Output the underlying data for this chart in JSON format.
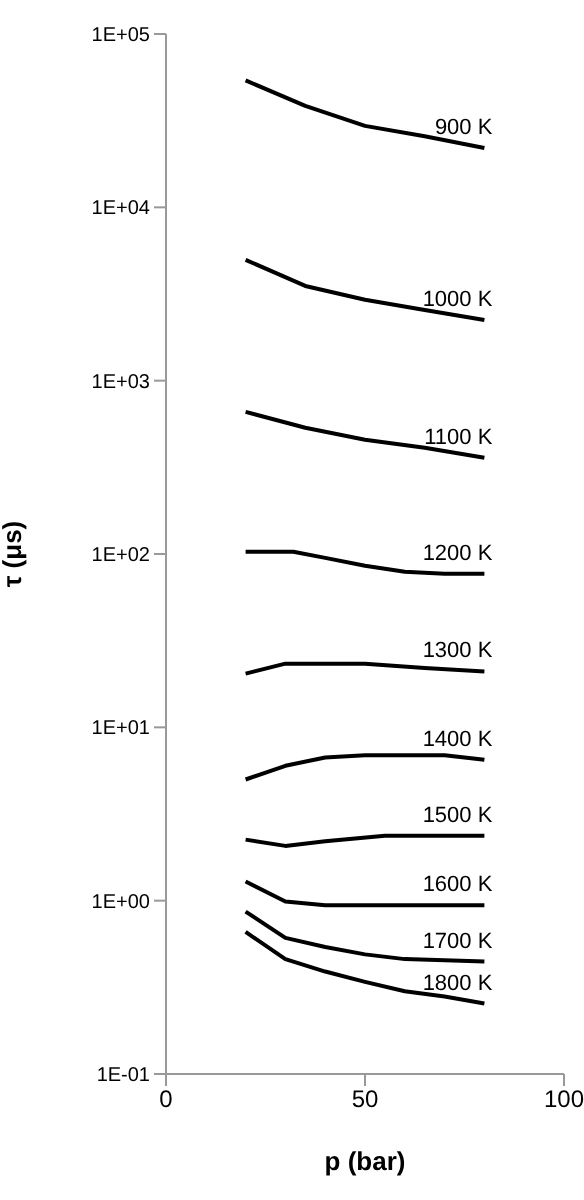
{
  "chart_data": {
    "type": "line",
    "xlabel": "p (bar)",
    "ylabel": "τ (μs)",
    "log": "y",
    "grid": false,
    "marker": "none",
    "line_style": "solid",
    "xlim": [
      0,
      100
    ],
    "xticks": [
      0,
      50,
      100
    ],
    "ylim": [
      0.1,
      100000
    ],
    "yticks": [
      {
        "value": 0.1,
        "label": "1E-01"
      },
      {
        "value": 1,
        "label": "1E+00"
      },
      {
        "value": 10,
        "label": "1E+01"
      },
      {
        "value": 100,
        "label": "1E+02"
      },
      {
        "value": 1000,
        "label": "1E+03"
      },
      {
        "value": 10000,
        "label": "1E+04"
      },
      {
        "value": 100000,
        "label": "1E+05"
      }
    ],
    "series": [
      {
        "name": "900 K",
        "color": "#000000",
        "x": [
          20,
          35,
          50,
          65,
          80
        ],
        "values": [
          54000,
          38500,
          29500,
          25700,
          22000
        ]
      },
      {
        "name": "1000 K",
        "color": "#000000",
        "x": [
          20,
          35,
          50,
          65,
          80
        ],
        "values": [
          4980,
          3520,
          2930,
          2560,
          2240
        ]
      },
      {
        "name": "1100 K",
        "color": "#000000",
        "x": [
          20,
          35,
          50,
          65,
          80
        ],
        "values": [
          661,
          535,
          456,
          410,
          359
        ]
      },
      {
        "name": "1200 K",
        "color": "#000000",
        "x": [
          20,
          32,
          40,
          50,
          60,
          70,
          80
        ],
        "values": [
          103,
          103,
          95,
          85.5,
          79,
          77,
          77
        ]
      },
      {
        "name": "1300 K",
        "color": "#000000",
        "x": [
          20,
          30,
          50,
          65,
          80
        ],
        "values": [
          20.4,
          23.3,
          23.3,
          22,
          21
        ]
      },
      {
        "name": "1400 K",
        "color": "#000000",
        "x": [
          20,
          30,
          40,
          50,
          70,
          80
        ],
        "values": [
          5.0,
          6.0,
          6.7,
          6.9,
          6.9,
          6.5
        ]
      },
      {
        "name": "1500 K",
        "color": "#000000",
        "x": [
          20,
          30,
          40,
          55,
          80
        ],
        "values": [
          2.25,
          2.07,
          2.2,
          2.37,
          2.37
        ]
      },
      {
        "name": "1600 K",
        "color": "#000000",
        "x": [
          20,
          30,
          40,
          60,
          80
        ],
        "values": [
          1.29,
          0.99,
          0.94,
          0.94,
          0.94
        ]
      },
      {
        "name": "1700 K",
        "color": "#000000",
        "x": [
          20,
          30,
          40,
          50,
          60,
          80
        ],
        "values": [
          0.865,
          0.61,
          0.54,
          0.49,
          0.46,
          0.445
        ]
      },
      {
        "name": "1800 K",
        "color": "#000000",
        "x": [
          20,
          30,
          40,
          50,
          60,
          70,
          80
        ],
        "values": [
          0.66,
          0.46,
          0.39,
          0.34,
          0.3,
          0.28,
          0.255
        ]
      }
    ]
  }
}
